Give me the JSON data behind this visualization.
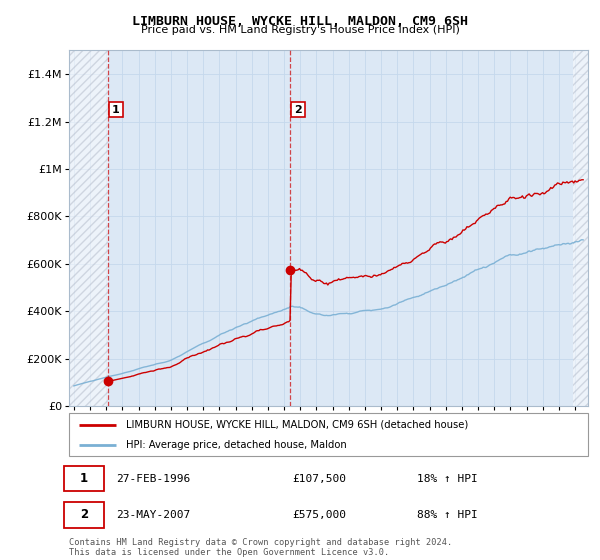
{
  "title": "LIMBURN HOUSE, WYCKE HILL, MALDON, CM9 6SH",
  "subtitle": "Price paid vs. HM Land Registry's House Price Index (HPI)",
  "transactions": [
    {
      "date_num": 1996.12,
      "price": 107500,
      "label": "1",
      "hpi_pct": "18% ↑ HPI",
      "date_str": "27-FEB-1996"
    },
    {
      "date_num": 2007.38,
      "price": 575000,
      "label": "2",
      "hpi_pct": "88% ↑ HPI",
      "date_str": "23-MAY-2007"
    }
  ],
  "legend_line1": "LIMBURN HOUSE, WYCKE HILL, MALDON, CM9 6SH (detached house)",
  "legend_line2": "HPI: Average price, detached house, Maldon",
  "footer": "Contains HM Land Registry data © Crown copyright and database right 2024.\nThis data is licensed under the Open Government Licence v3.0.",
  "ylim": [
    0,
    1500000
  ],
  "yticks": [
    0,
    200000,
    400000,
    600000,
    800000,
    1000000,
    1200000,
    1400000
  ],
  "xlim_start": 1993.7,
  "xlim_end": 2025.8,
  "hatch_end": 1996.12,
  "hatch_start_right": 2024.9,
  "red_line_color": "#cc0000",
  "blue_line_color": "#7ab0d4",
  "background_color": "#dce8f5",
  "plot_bg": "#ffffff",
  "hatch_color": "#b0b8c8"
}
